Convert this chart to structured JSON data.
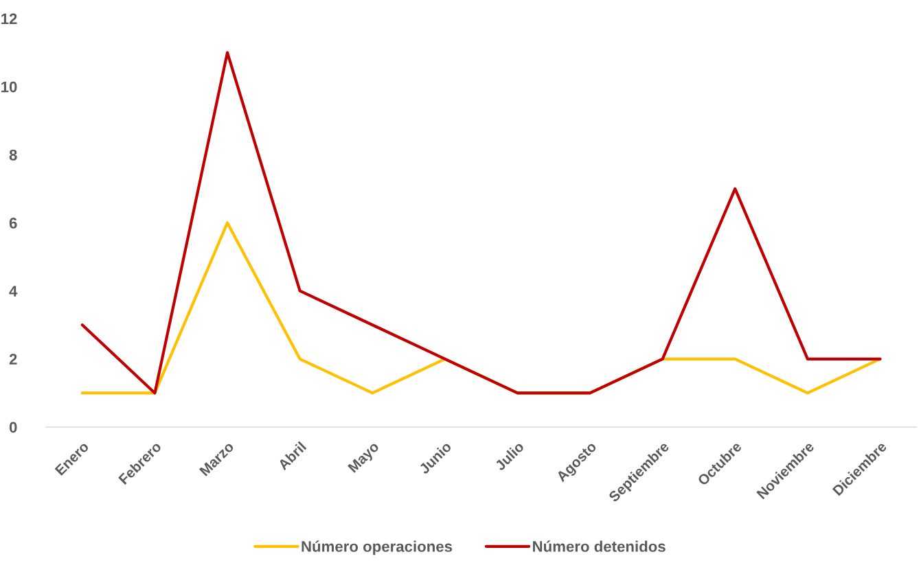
{
  "chart_data": {
    "type": "line",
    "categories": [
      "Enero",
      "Febrero",
      "Marzo",
      "Abril",
      "Mayo",
      "Junio",
      "Julio",
      "Agosto",
      "Septiembre",
      "Octubre",
      "Noviembre",
      "Diciembre"
    ],
    "series": [
      {
        "name": "Número operaciones",
        "color": "#ffc000",
        "values": [
          1,
          1,
          6,
          2,
          1,
          2,
          1,
          1,
          2,
          2,
          1,
          2
        ]
      },
      {
        "name": "Número detenidos",
        "color": "#c00000",
        "values": [
          3,
          1,
          11,
          4,
          3,
          2,
          1,
          1,
          2,
          7,
          2,
          2
        ]
      }
    ],
    "ylim": [
      0,
      12
    ],
    "yticks": [
      0,
      2,
      4,
      6,
      8,
      10,
      12
    ],
    "grid": false,
    "legend": "bottom",
    "line_style": "solid"
  }
}
